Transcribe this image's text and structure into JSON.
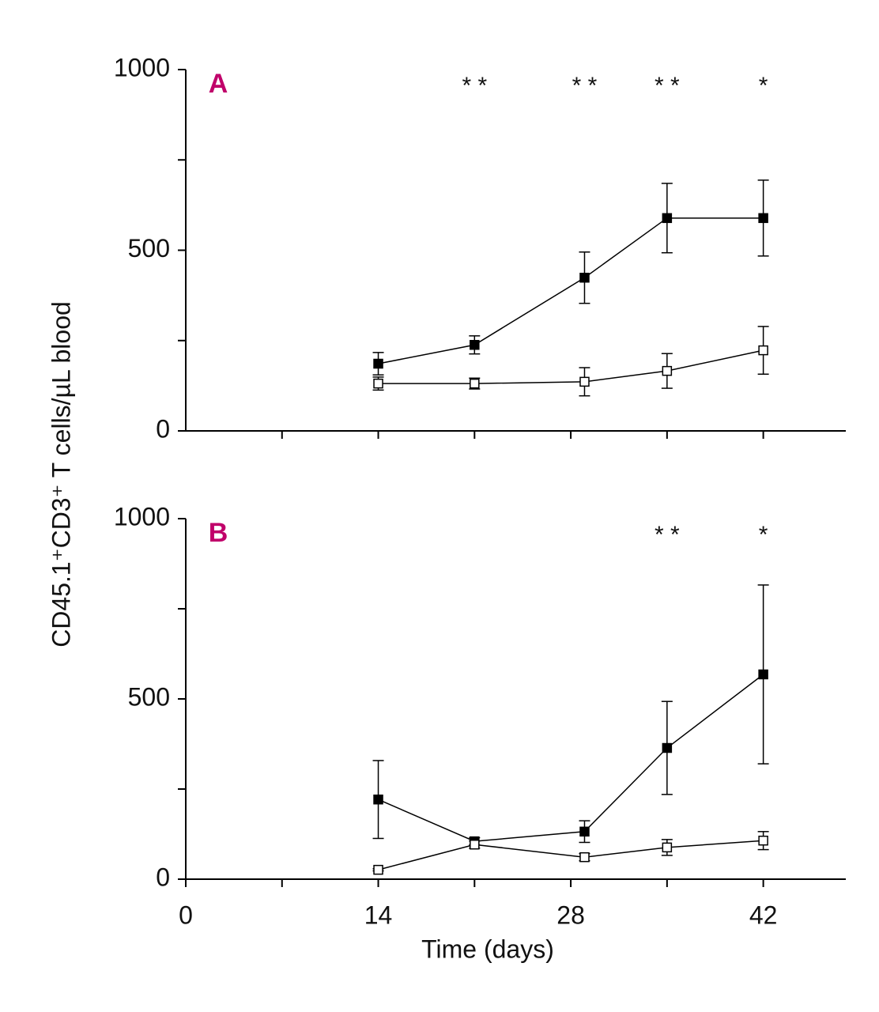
{
  "chart_data": [
    {
      "type": "line",
      "panel_label": "A",
      "ylabel": "CD45.1⁺CD3⁺ T cells/µL blood",
      "xlim": [
        0,
        48
      ],
      "ylim": [
        0,
        1000
      ],
      "yticks": [
        0,
        500,
        1000
      ],
      "yminorticks": [
        250,
        750
      ],
      "xminorticks": [
        7,
        14,
        21,
        28,
        35,
        42
      ],
      "x": [
        14,
        21,
        29,
        35,
        42
      ],
      "series": [
        {
          "marker": "filled",
          "color": "#000000",
          "values": [
            186,
            238,
            424,
            589,
            589
          ],
          "errors": [
            31,
            25,
            71,
            96,
            105
          ]
        },
        {
          "marker": "open",
          "color": "#000000",
          "values": [
            131,
            131,
            136,
            166,
            223
          ],
          "errors": [
            18,
            15,
            39,
            48,
            66
          ]
        }
      ],
      "annotations": [
        {
          "x": 21,
          "text": "* *"
        },
        {
          "x": 29,
          "text": "* *"
        },
        {
          "x": 35,
          "text": "* *"
        },
        {
          "x": 42,
          "text": "*"
        }
      ]
    },
    {
      "type": "line",
      "panel_label": "B",
      "xlabel": "Time (days)",
      "xlim": [
        0,
        48
      ],
      "ylim": [
        0,
        1000
      ],
      "yticks": [
        0,
        500,
        1000
      ],
      "yminorticks": [
        250,
        750
      ],
      "xticks": [
        0,
        14,
        28,
        42
      ],
      "xminorticks": [
        7,
        21,
        35
      ],
      "x": [
        14,
        21,
        29,
        35,
        42
      ],
      "series": [
        {
          "marker": "filled",
          "color": "#000000",
          "values": [
            221,
            105,
            132,
            364,
            568
          ],
          "errors": [
            108,
            10,
            30,
            129,
            248
          ]
        },
        {
          "marker": "open",
          "color": "#000000",
          "values": [
            26,
            96,
            61,
            88,
            107
          ],
          "errors": [
            3,
            10,
            10,
            22,
            25
          ]
        }
      ],
      "annotations": [
        {
          "x": 35,
          "text": "* *"
        },
        {
          "x": 42,
          "text": "*"
        }
      ]
    }
  ]
}
